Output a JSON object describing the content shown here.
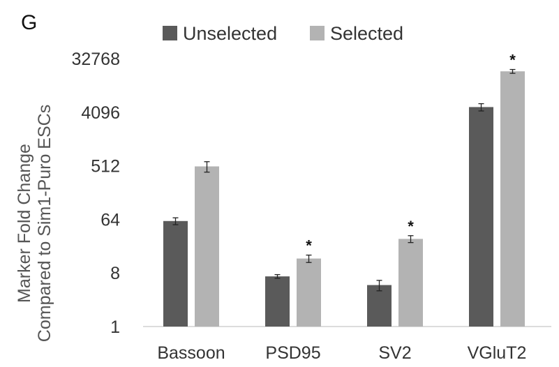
{
  "panel_label": "G",
  "chart_data": {
    "type": "bar",
    "scale": "log2",
    "categories": [
      "Bassoon",
      "PSD95",
      "SV2",
      "VGluT2"
    ],
    "series": [
      {
        "name": "Unselected",
        "color": "#5a5a5a",
        "values": [
          60,
          7,
          5,
          5000
        ],
        "errors": [
          8,
          0.5,
          1,
          700
        ]
      },
      {
        "name": "Selected",
        "color": "#b3b3b3",
        "values": [
          500,
          14,
          30,
          20000
        ],
        "errors": [
          100,
          2,
          4,
          1500
        ]
      }
    ],
    "significance": [
      "",
      "*",
      "*",
      "*"
    ],
    "significance_series": "Selected",
    "ylabel_line1": "Marker Fold Change",
    "ylabel_line2": "Compared to Sim1-Puro ESCs",
    "ylim": [
      1,
      32768
    ],
    "yticks": [
      1,
      8,
      64,
      512,
      4096,
      32768
    ],
    "grid": false,
    "legend_position": "top"
  }
}
